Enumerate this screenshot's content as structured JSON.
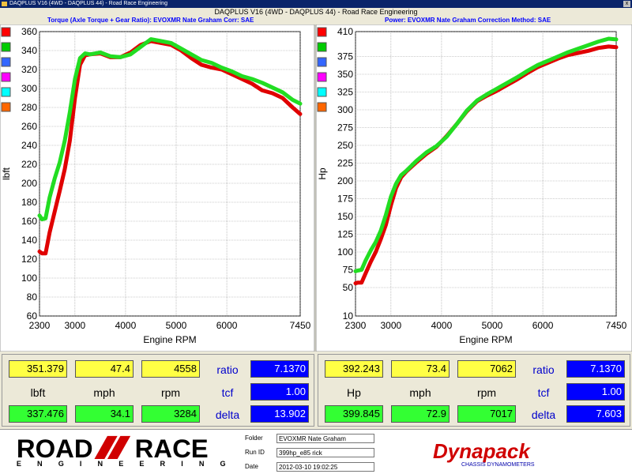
{
  "window": {
    "title": "DAQPLUS V16 (4WD - DAQPLUS 44) - Road Race Engineering",
    "subtitle": "DAQPLUS V16 (4WD - DAQPLUS 44) - Road Race Engineering",
    "close_label": "x"
  },
  "left_header": {
    "text": "Torque (Axle Torque + Gear Ratio): EVOXMR Nate Graham      Corr: SAE"
  },
  "right_header": {
    "text": "Power: EVOXMR Nate Graham      Correction Method: SAE"
  },
  "colors": {
    "series_red": "#e00000",
    "series_green": "#22dd22",
    "swatches": [
      "#ff0000",
      "#00cc00",
      "#3366ff",
      "#ff00ff",
      "#00ffff",
      "#ff6600"
    ]
  },
  "chart_data": [
    {
      "type": "line",
      "xlabel": "Engine RPM",
      "ylabel": "lbft",
      "xlim": [
        2300,
        7450
      ],
      "ylim": [
        60,
        360
      ],
      "x_ticks": [
        2300,
        3000,
        4000,
        5000,
        6000,
        7450
      ],
      "y_ticks": [
        60,
        80,
        100,
        120,
        140,
        160,
        180,
        200,
        220,
        240,
        260,
        280,
        300,
        320,
        340,
        360
      ],
      "grid": true,
      "series": [
        {
          "color": "#e00000",
          "x": [
            2300,
            2350,
            2420,
            2500,
            2600,
            2700,
            2800,
            2900,
            3000,
            3100,
            3200,
            3300,
            3500,
            3700,
            3900,
            4100,
            4300,
            4500,
            4700,
            4900,
            5100,
            5300,
            5500,
            5700,
            5900,
            6100,
            6300,
            6500,
            6700,
            6900,
            7100,
            7300,
            7450
          ],
          "y": [
            128,
            126,
            126,
            148,
            170,
            192,
            215,
            245,
            290,
            325,
            335,
            336,
            337,
            333,
            333,
            338,
            346,
            350,
            348,
            346,
            340,
            332,
            325,
            322,
            320,
            315,
            310,
            305,
            298,
            295,
            290,
            280,
            273
          ]
        },
        {
          "color": "#22dd22",
          "x": [
            2300,
            2350,
            2420,
            2500,
            2600,
            2700,
            2800,
            2900,
            3000,
            3100,
            3200,
            3300,
            3500,
            3700,
            3900,
            4100,
            4300,
            4500,
            4700,
            4900,
            5100,
            5300,
            5500,
            5700,
            5900,
            6100,
            6300,
            6500,
            6700,
            6900,
            7100,
            7300,
            7450
          ],
          "y": [
            166,
            162,
            163,
            185,
            205,
            222,
            245,
            275,
            310,
            332,
            337,
            336,
            338,
            334,
            333,
            336,
            344,
            352,
            350,
            348,
            342,
            336,
            330,
            327,
            322,
            318,
            313,
            310,
            306,
            301,
            296,
            288,
            284
          ]
        }
      ]
    },
    {
      "type": "line",
      "xlabel": "Engine RPM",
      "ylabel": "Hp",
      "xlim": [
        2300,
        7450
      ],
      "ylim": [
        10,
        410
      ],
      "x_ticks": [
        2300,
        3000,
        4000,
        5000,
        6000,
        7450
      ],
      "y_ticks": [
        10,
        50,
        75,
        100,
        125,
        150,
        175,
        200,
        225,
        250,
        275,
        300,
        325,
        350,
        375,
        410
      ],
      "grid": true,
      "series": [
        {
          "color": "#e00000",
          "x": [
            2300,
            2350,
            2420,
            2500,
            2600,
            2700,
            2800,
            2900,
            3000,
            3100,
            3200,
            3300,
            3500,
            3700,
            3900,
            4100,
            4300,
            4500,
            4700,
            4900,
            5100,
            5300,
            5500,
            5700,
            5900,
            6100,
            6300,
            6500,
            6700,
            6900,
            7100,
            7300,
            7450
          ],
          "y": [
            56,
            57,
            57,
            70,
            86,
            100,
            118,
            138,
            166,
            190,
            205,
            213,
            226,
            238,
            248,
            263,
            280,
            298,
            312,
            320,
            327,
            335,
            343,
            352,
            360,
            366,
            372,
            377,
            380,
            383,
            387,
            389,
            388
          ]
        },
        {
          "color": "#22dd22",
          "x": [
            2300,
            2350,
            2420,
            2500,
            2600,
            2700,
            2800,
            2900,
            3000,
            3100,
            3200,
            3300,
            3500,
            3700,
            3900,
            4100,
            4300,
            4500,
            4700,
            4900,
            5100,
            5300,
            5500,
            5700,
            5900,
            6100,
            6300,
            6500,
            6700,
            6900,
            7100,
            7300,
            7450
          ],
          "y": [
            73,
            74,
            75,
            88,
            102,
            114,
            130,
            152,
            178,
            196,
            208,
            214,
            228,
            240,
            249,
            262,
            280,
            299,
            313,
            322,
            330,
            338,
            346,
            355,
            363,
            369,
            375,
            381,
            386,
            391,
            396,
            400,
            399
          ]
        }
      ]
    }
  ],
  "left_readout": {
    "top_values": [
      "351.379",
      "47.4",
      "4558"
    ],
    "labels": [
      "lbft",
      "mph",
      "rpm"
    ],
    "bottom_values": [
      "337.476",
      "34.1",
      "3284"
    ],
    "right_labels": [
      "ratio",
      "tcf",
      "delta"
    ],
    "right_values": [
      "7.1370",
      "1.00",
      "13.902"
    ]
  },
  "right_readout": {
    "top_values": [
      "392.243",
      "73.4",
      "7062"
    ],
    "labels": [
      "Hp",
      "mph",
      "rpm"
    ],
    "bottom_values": [
      "399.845",
      "72.9",
      "7017"
    ],
    "right_labels": [
      "ratio",
      "tcf",
      "delta"
    ],
    "right_values": [
      "7.1370",
      "1.00",
      "7.603"
    ]
  },
  "footer": {
    "logo_word1": "ROAD",
    "logo_word2": "RACE",
    "logo_tagline": "E N G I N E E R I N G",
    "meta_labels": [
      "Folder",
      "Run ID",
      "Date"
    ],
    "meta_values": [
      "EVOXMR Nate Graham",
      "399hp_e85 rick",
      "2012-03-10 19:02:25"
    ],
    "brand": "Dynapack",
    "brand_tagline": "CHASSIS DYNAMOMETERS"
  }
}
